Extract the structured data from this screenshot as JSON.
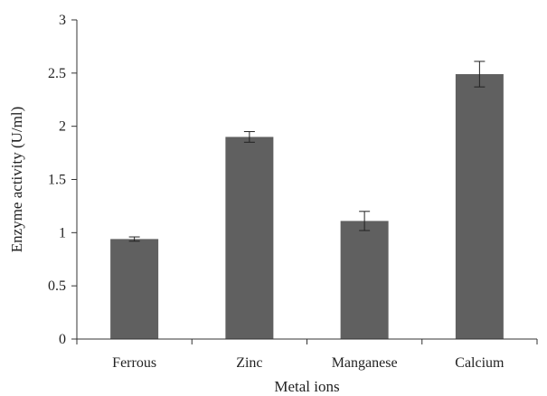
{
  "chart_data": {
    "type": "bar",
    "title": "",
    "xlabel": "Metal ions",
    "ylabel": "Enzyme activity (U/ml)",
    "categories": [
      "Ferrous",
      "Zinc",
      "Manganese",
      "Calcium"
    ],
    "values": [
      0.94,
      1.9,
      1.11,
      2.49
    ],
    "error": [
      0.02,
      0.05,
      0.09,
      0.12
    ],
    "ylim": [
      0,
      3
    ],
    "yticks": [
      "0",
      "0.5",
      "1",
      "1.5",
      "2",
      "2.5",
      "3"
    ],
    "grid": false,
    "legend": "none",
    "bar_color": "#606060"
  }
}
